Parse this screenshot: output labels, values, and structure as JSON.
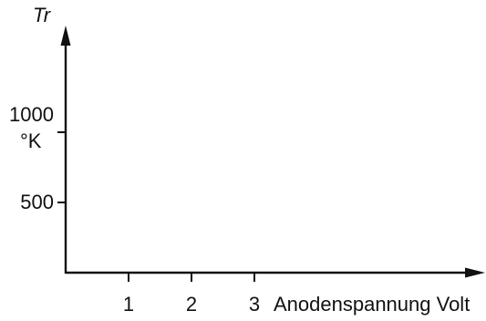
{
  "chart_data": {
    "type": "line",
    "title": "",
    "ylabel": "Tr",
    "yunit": "°K",
    "xlabel": "Anodenspannung Volt",
    "x_ticks": [
      1,
      2,
      3
    ],
    "y_ticks": [
      500,
      1000
    ],
    "xlim": [
      0,
      6.3
    ],
    "ylim": [
      0,
      1700
    ],
    "series": []
  }
}
